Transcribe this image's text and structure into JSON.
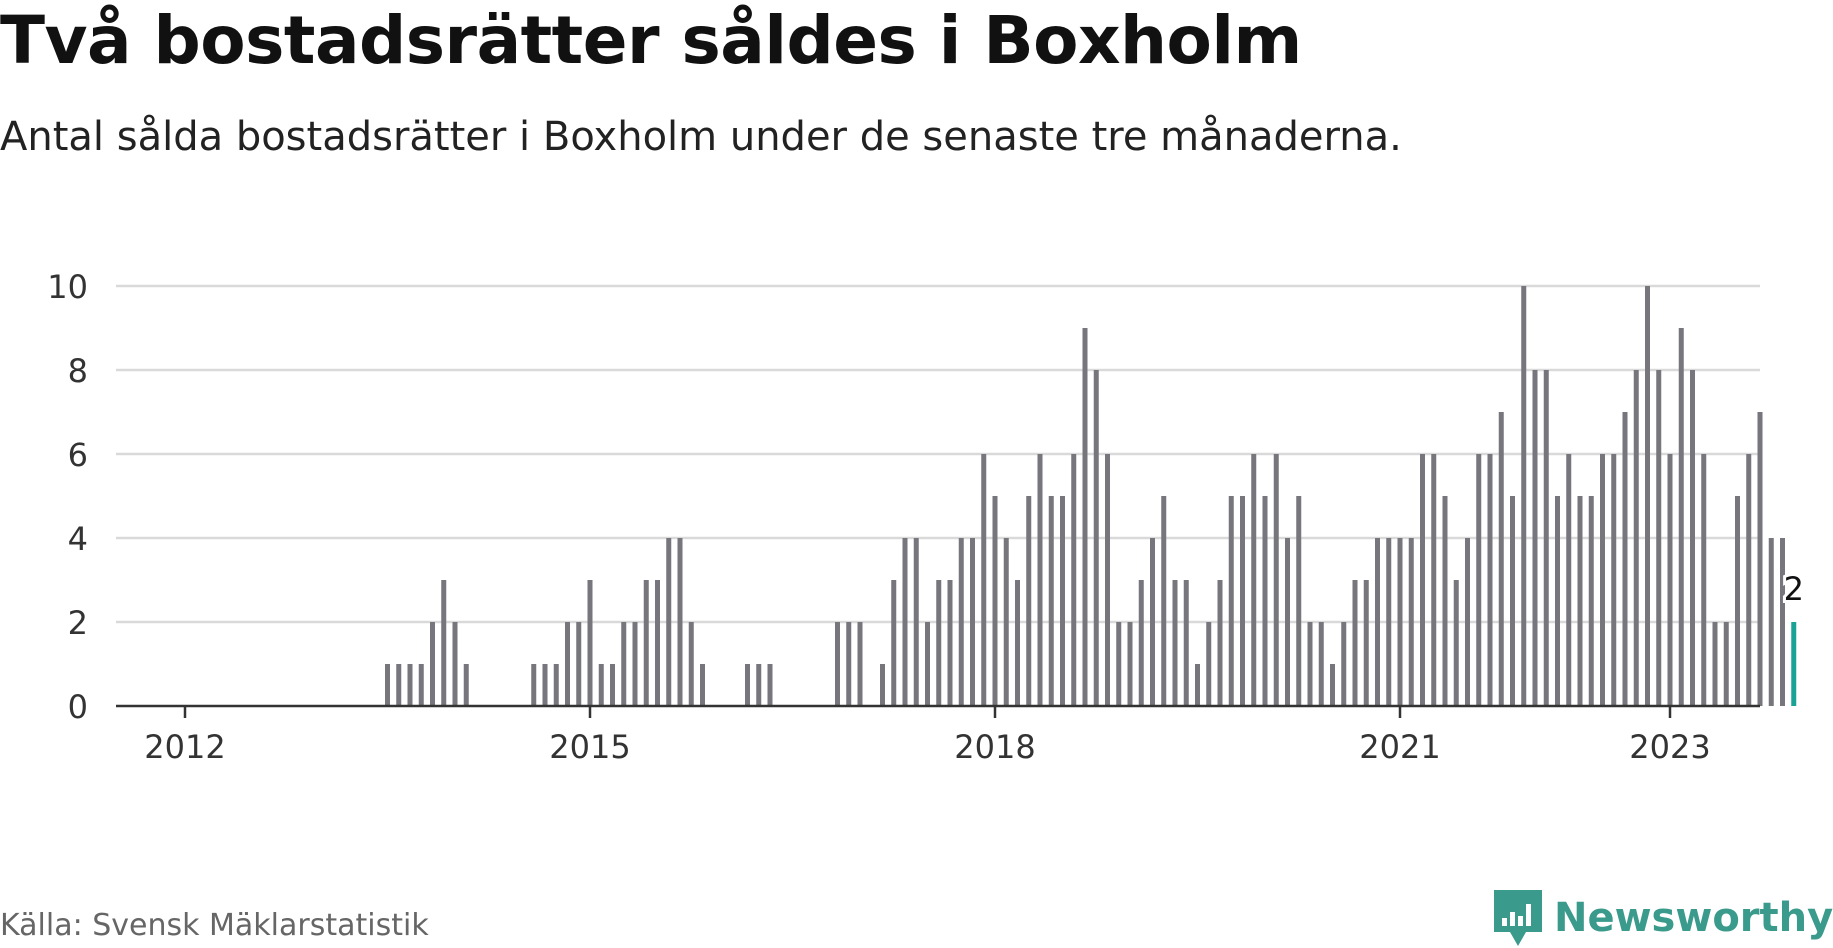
{
  "title": "Två bostadsrätter såldes i Boxholm",
  "subtitle": "Antal sålda bostadsrätter i Boxholm under de senaste tre månaderna.",
  "source": "Källa: Svensk Mäklarstatistik",
  "brand": {
    "name": "Newsworthy",
    "icon": "newsworthy-logo-icon",
    "color": "#3a9a8c"
  },
  "chart_data": {
    "type": "bar",
    "xlabel": "",
    "ylabel": "",
    "ylim": [
      0,
      10
    ],
    "yticks": [
      "0",
      "2",
      "4",
      "6",
      "8",
      "10"
    ],
    "xticks": [
      "2012",
      "2015",
      "2018",
      "2021",
      "2023"
    ],
    "grid": true,
    "colors": {
      "bar": "#76767c",
      "highlight": "#1aa394",
      "grid": "#d9d9d9",
      "axis": "#333333"
    },
    "series": [
      {
        "values": [
          0,
          0,
          0,
          0,
          0,
          0,
          0,
          0,
          0,
          0,
          0,
          0,
          0,
          0,
          0,
          0,
          0,
          0,
          1,
          1,
          1,
          1,
          2,
          3,
          2,
          1,
          0,
          0,
          0,
          0,
          0,
          1,
          1,
          1,
          2,
          2,
          3,
          1,
          1,
          2,
          2,
          3,
          3,
          4,
          4,
          2,
          1,
          0,
          0,
          0,
          1,
          1,
          1,
          0,
          0,
          0,
          0,
          0,
          2,
          2,
          2,
          0,
          1,
          3,
          4,
          4,
          2,
          3,
          3,
          4,
          4,
          6,
          5,
          4,
          3,
          5,
          6,
          5,
          5,
          6,
          9,
          8,
          6,
          2,
          2,
          3,
          4,
          5,
          3,
          3,
          1,
          2,
          3,
          5,
          5,
          6,
          5,
          6,
          4,
          5,
          2,
          2,
          1,
          2,
          3,
          3,
          4,
          4,
          4,
          4,
          6,
          6,
          5,
          3,
          4,
          6,
          6,
          7,
          5,
          10,
          8,
          8,
          5,
          6,
          5,
          5,
          6,
          6,
          7,
          8,
          10,
          8,
          6,
          9,
          8,
          6,
          2,
          2,
          5,
          6,
          7,
          4,
          4,
          2
        ]
      }
    ],
    "highlight": {
      "value": 2,
      "label": "2"
    }
  }
}
